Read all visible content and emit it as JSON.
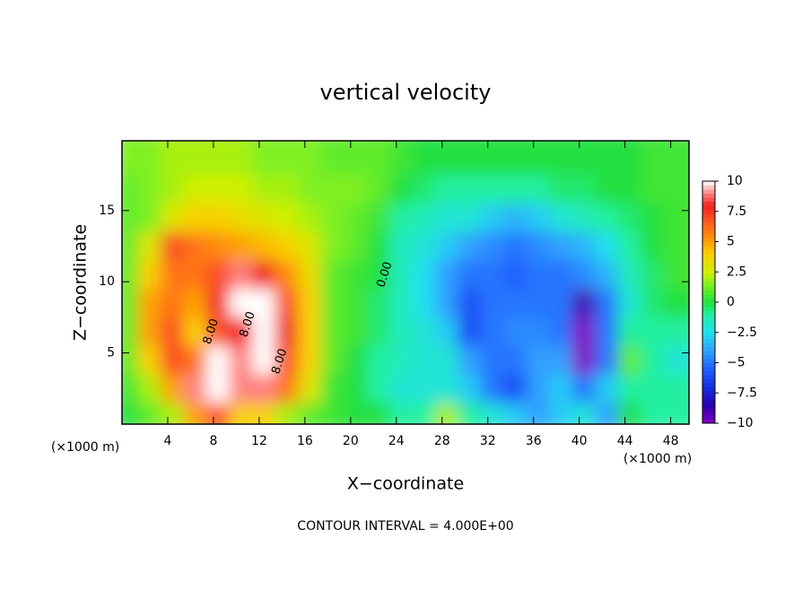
{
  "chart_data": {
    "type": "contour",
    "title": "vertical velocity",
    "xlabel": "X−coordinate",
    "ylabel": "Z−coordinate",
    "x_unit_left": "(×1000 m)",
    "x_unit_right": "(×1000 m)",
    "footer": "CONTOUR INTERVAL = 4.000E+00",
    "xlim": [
      0,
      49.6
    ],
    "ylim": [
      0,
      19.9
    ],
    "xticks": [
      4,
      8,
      12,
      16,
      20,
      24,
      28,
      32,
      36,
      40,
      44,
      48
    ],
    "yticks": [
      5,
      10,
      15
    ],
    "x": [
      1,
      3,
      5,
      7,
      9,
      11,
      13,
      15,
      17,
      19,
      21,
      23,
      25,
      27,
      29,
      31,
      33,
      35,
      37,
      39,
      41,
      43,
      45,
      47,
      49
    ],
    "z": [
      1,
      3,
      5,
      7,
      9,
      11,
      13,
      15,
      17,
      19
    ],
    "values": [
      [
        0,
        1,
        2,
        5,
        7,
        4,
        4,
        2,
        1,
        0.5,
        0,
        0,
        -1,
        -1,
        2,
        -1,
        -2,
        -3,
        -4,
        -3,
        -2,
        -4,
        0,
        -1,
        -1
      ],
      [
        0.5,
        2,
        5,
        9,
        11,
        9,
        9,
        6,
        3,
        0.5,
        0,
        -1,
        -2,
        -2,
        -2,
        -3,
        -5,
        -6,
        -4,
        -3,
        -5,
        -3,
        -1,
        -1,
        -1
      ],
      [
        1,
        4,
        7,
        6,
        10,
        9,
        12,
        7,
        4,
        1,
        0,
        -1,
        -1.5,
        -2,
        -2,
        -4,
        -5,
        -5,
        -4,
        -4,
        -11,
        -5,
        1,
        -1,
        -2
      ],
      [
        1,
        5,
        7,
        4,
        7,
        8,
        11,
        8,
        4,
        1,
        0.5,
        -0.5,
        -1.5,
        -2,
        -3,
        -6,
        -5,
        -4.5,
        -4.5,
        -5,
        -11,
        -5,
        -1,
        -1,
        -1
      ],
      [
        1,
        5,
        6,
        5,
        8,
        11,
        11,
        7,
        4,
        1,
        0.5,
        -0.5,
        -1.5,
        -2.5,
        -4,
        -6,
        -5,
        -5,
        -5,
        -5,
        -9,
        -5,
        -2,
        -0.5,
        0
      ],
      [
        1,
        4,
        6,
        6,
        7,
        9,
        8,
        5.5,
        3.5,
        1,
        0.5,
        0,
        -1.5,
        -2.5,
        -4,
        -5,
        -5,
        -5.5,
        -5,
        -5,
        -4.5,
        -3.5,
        -1.5,
        -0.5,
        0.5
      ],
      [
        1,
        3,
        7,
        6,
        5.5,
        5,
        4.5,
        4,
        3,
        1.5,
        1,
        0,
        -1.5,
        -2,
        -3,
        -4,
        -4.5,
        -5,
        -4.5,
        -4,
        -3.5,
        -2.5,
        -1,
        0,
        0.5
      ],
      [
        1,
        1.5,
        3,
        4,
        4,
        3.5,
        3,
        2.5,
        2,
        1.5,
        1,
        0.5,
        -1,
        -1.5,
        -2,
        -2,
        -3,
        -3.5,
        -3,
        -2,
        -1.5,
        -1,
        -0.5,
        0,
        0.5
      ],
      [
        1,
        1.5,
        2,
        2.5,
        2.5,
        2.5,
        2,
        2,
        1.5,
        1.5,
        1.5,
        1,
        0,
        -0.5,
        -1,
        -1,
        -1,
        -1,
        -1,
        -0.5,
        -0.5,
        0,
        0,
        0.5,
        0.5
      ],
      [
        1.5,
        1.5,
        2,
        2,
        2,
        2,
        1.5,
        1.5,
        1.5,
        1,
        1,
        1,
        0.5,
        0,
        0,
        0,
        0,
        0,
        0,
        0,
        0,
        0,
        0,
        0.5,
        0.5
      ]
    ],
    "color_stops": [
      {
        "value": -10,
        "color": "#8000c0"
      },
      {
        "value": -8.5,
        "color": "#2a00b0"
      },
      {
        "value": -7,
        "color": "#1030e0"
      },
      {
        "value": -5.5,
        "color": "#2060ff"
      },
      {
        "value": -4,
        "color": "#30a0ff"
      },
      {
        "value": -2.5,
        "color": "#20e0f0"
      },
      {
        "value": -1,
        "color": "#20f0a0"
      },
      {
        "value": 0,
        "color": "#20e040"
      },
      {
        "value": 1.5,
        "color": "#80f020"
      },
      {
        "value": 2.5,
        "color": "#d0f000"
      },
      {
        "value": 4,
        "color": "#f8d000"
      },
      {
        "value": 5,
        "color": "#ffa000"
      },
      {
        "value": 6.5,
        "color": "#ff6020"
      },
      {
        "value": 8,
        "color": "#f02020"
      },
      {
        "value": 9,
        "color": "#ff8080"
      },
      {
        "value": 10,
        "color": "#ffffff"
      }
    ],
    "colorbar_lim": [
      -10,
      10
    ],
    "colorbar_ticks": [
      10,
      7.5,
      5,
      2.5,
      0,
      {
        "value": -2.5,
        "label": "−2.5"
      },
      {
        "value": -5,
        "label": "−5"
      },
      {
        "value": -7.5,
        "label": "−7.5"
      },
      {
        "value": -10,
        "label": "−10"
      }
    ],
    "contour_labels": [
      {
        "label": "0.00",
        "x": 23,
        "z": 10.5
      },
      {
        "label": "8.00",
        "x": 7.8,
        "z": 6.5
      },
      {
        "label": "8.00",
        "x": 11,
        "z": 7
      },
      {
        "label": "8.00",
        "x": 13.8,
        "z": 4.4
      }
    ]
  }
}
